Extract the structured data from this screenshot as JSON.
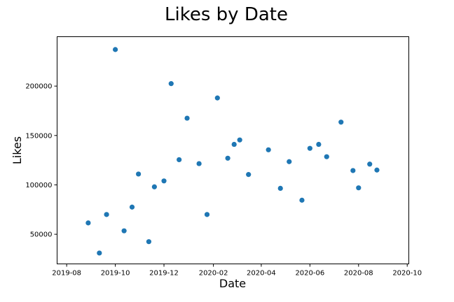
{
  "chart_data": {
    "type": "scatter",
    "title": "Likes by Date",
    "xlabel": "Date",
    "ylabel": "Likes",
    "grid": false,
    "point_color": "#1f77b4",
    "xlim": [
      "2019-07-20",
      "2020-10-03"
    ],
    "ylim": [
      20000,
      250000
    ],
    "x_ticks": [
      {
        "value": "2019-08-01",
        "label": "2019-08"
      },
      {
        "value": "2019-10-01",
        "label": "2019-10"
      },
      {
        "value": "2019-12-01",
        "label": "2019-12"
      },
      {
        "value": "2020-02-01",
        "label": "2020-02"
      },
      {
        "value": "2020-04-01",
        "label": "2020-04"
      },
      {
        "value": "2020-06-01",
        "label": "2020-06"
      },
      {
        "value": "2020-08-01",
        "label": "2020-08"
      },
      {
        "value": "2020-10-01",
        "label": "2020-10"
      }
    ],
    "y_ticks": [
      {
        "value": 50000,
        "label": "50000"
      },
      {
        "value": 100000,
        "label": "100000"
      },
      {
        "value": 150000,
        "label": "150000"
      },
      {
        "value": 200000,
        "label": "200000"
      }
    ],
    "points": [
      {
        "x": "2019-08-28",
        "y": 61500
      },
      {
        "x": "2019-09-11",
        "y": 31000
      },
      {
        "x": "2019-09-20",
        "y": 70000
      },
      {
        "x": "2019-10-01",
        "y": 237000
      },
      {
        "x": "2019-10-12",
        "y": 53500
      },
      {
        "x": "2019-10-22",
        "y": 77500
      },
      {
        "x": "2019-10-30",
        "y": 111000
      },
      {
        "x": "2019-11-12",
        "y": 42500
      },
      {
        "x": "2019-11-19",
        "y": 98000
      },
      {
        "x": "2019-12-01",
        "y": 104000
      },
      {
        "x": "2019-12-10",
        "y": 202500
      },
      {
        "x": "2019-12-20",
        "y": 125500
      },
      {
        "x": "2019-12-30",
        "y": 167500
      },
      {
        "x": "2020-01-14",
        "y": 121500
      },
      {
        "x": "2020-01-24",
        "y": 70000
      },
      {
        "x": "2020-02-06",
        "y": 188000
      },
      {
        "x": "2020-02-19",
        "y": 127000
      },
      {
        "x": "2020-02-27",
        "y": 141000
      },
      {
        "x": "2020-03-05",
        "y": 145500
      },
      {
        "x": "2020-03-16",
        "y": 110500
      },
      {
        "x": "2020-04-10",
        "y": 135500
      },
      {
        "x": "2020-04-25",
        "y": 96500
      },
      {
        "x": "2020-05-06",
        "y": 123500
      },
      {
        "x": "2020-05-22",
        "y": 84500
      },
      {
        "x": "2020-06-01",
        "y": 137000
      },
      {
        "x": "2020-06-12",
        "y": 141000
      },
      {
        "x": "2020-06-22",
        "y": 128500
      },
      {
        "x": "2020-07-10",
        "y": 163500
      },
      {
        "x": "2020-07-25",
        "y": 114500
      },
      {
        "x": "2020-08-01",
        "y": 97000
      },
      {
        "x": "2020-08-15",
        "y": 121000
      },
      {
        "x": "2020-08-24",
        "y": 115000
      }
    ]
  }
}
